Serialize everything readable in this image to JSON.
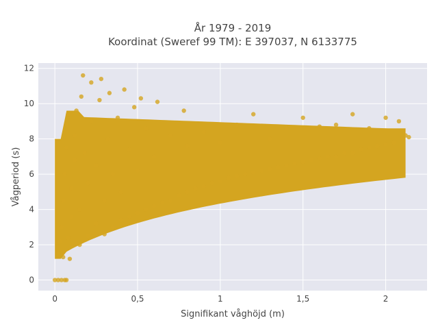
{
  "chart_data": {
    "type": "scatter",
    "title": "År 1979 - 2019",
    "subtitle": "Koordinat (Sweref 99 TM): E 397037, N 6133775",
    "xlabel": "Signifikant våghöjd (m)",
    "ylabel": "Vågperiod (s)",
    "xlim": [
      -0.1,
      2.25
    ],
    "ylim": [
      -0.6,
      12.3
    ],
    "x_ticks": [
      0,
      0.5,
      1,
      1.5,
      2
    ],
    "x_tick_labels": [
      "0",
      "0,5",
      "1",
      "1,5",
      "2"
    ],
    "y_ticks": [
      0,
      2,
      4,
      6,
      8,
      10,
      12
    ],
    "y_tick_labels": [
      "0",
      "2",
      "4",
      "6",
      "8",
      "10",
      "12"
    ],
    "grid": true,
    "legend": "none",
    "point_color": "#D4A520",
    "background_color": "#E5E6EF",
    "series": [
      {
        "points": [
          [
            0.02,
            1.5
          ],
          [
            0.03,
            2.2
          ],
          [
            0.04,
            3.0
          ],
          [
            0.05,
            1.3
          ],
          [
            0.05,
            4.5
          ],
          [
            0.06,
            6.0
          ],
          [
            0.07,
            7.5
          ],
          [
            0.07,
            8.8
          ],
          [
            0.08,
            2.4
          ],
          [
            0.08,
            9.4
          ],
          [
            0.09,
            1.2
          ],
          [
            0.1,
            3.6
          ],
          [
            0.1,
            5.2
          ],
          [
            0.12,
            6.8
          ],
          [
            0.12,
            8.2
          ],
          [
            0.13,
            9.6
          ],
          [
            0.15,
            2.0
          ],
          [
            0.15,
            4.0
          ],
          [
            0.16,
            10.4
          ],
          [
            0.17,
            11.6
          ],
          [
            0.18,
            7.2
          ],
          [
            0.2,
            2.5
          ],
          [
            0.2,
            5.5
          ],
          [
            0.22,
            9.0
          ],
          [
            0.22,
            11.2
          ],
          [
            0.25,
            3.2
          ],
          [
            0.25,
            6.5
          ],
          [
            0.27,
            10.2
          ],
          [
            0.28,
            11.4
          ],
          [
            0.3,
            2.6
          ],
          [
            0.3,
            4.5
          ],
          [
            0.32,
            8.0
          ],
          [
            0.33,
            10.6
          ],
          [
            0.35,
            3.0
          ],
          [
            0.35,
            6.0
          ],
          [
            0.38,
            9.2
          ],
          [
            0.4,
            3.4
          ],
          [
            0.4,
            5.0
          ],
          [
            0.42,
            10.8
          ],
          [
            0.45,
            3.6
          ],
          [
            0.45,
            7.4
          ],
          [
            0.48,
            9.8
          ],
          [
            0.5,
            3.8
          ],
          [
            0.5,
            6.2
          ],
          [
            0.52,
            10.3
          ],
          [
            0.55,
            4.0
          ],
          [
            0.55,
            8.6
          ],
          [
            0.6,
            4.2
          ],
          [
            0.6,
            7.0
          ],
          [
            0.62,
            10.1
          ],
          [
            0.65,
            4.4
          ],
          [
            0.7,
            4.5
          ],
          [
            0.7,
            8.2
          ],
          [
            0.75,
            4.8
          ],
          [
            0.78,
            9.6
          ],
          [
            0.8,
            5.0
          ],
          [
            0.8,
            7.6
          ],
          [
            0.85,
            5.2
          ],
          [
            0.9,
            5.3
          ],
          [
            0.9,
            8.4
          ],
          [
            0.95,
            5.5
          ],
          [
            1.0,
            5.6
          ],
          [
            1.0,
            7.8
          ],
          [
            1.05,
            5.8
          ],
          [
            1.1,
            5.9
          ],
          [
            1.1,
            8.8
          ],
          [
            1.15,
            6.0
          ],
          [
            1.2,
            6.1
          ],
          [
            1.2,
            9.4
          ],
          [
            1.25,
            6.2
          ],
          [
            1.3,
            6.3
          ],
          [
            1.3,
            8.0
          ],
          [
            1.35,
            6.4
          ],
          [
            1.4,
            6.5
          ],
          [
            1.4,
            8.6
          ],
          [
            1.45,
            6.6
          ],
          [
            1.5,
            6.7
          ],
          [
            1.5,
            9.2
          ],
          [
            1.55,
            6.8
          ],
          [
            1.6,
            6.9
          ],
          [
            1.6,
            8.7
          ],
          [
            1.65,
            7.0
          ],
          [
            1.7,
            7.0
          ],
          [
            1.7,
            8.8
          ],
          [
            1.75,
            7.2
          ],
          [
            1.8,
            7.2
          ],
          [
            1.8,
            9.4
          ],
          [
            1.85,
            7.4
          ],
          [
            1.9,
            7.5
          ],
          [
            1.9,
            8.6
          ],
          [
            1.95,
            7.6
          ],
          [
            2.0,
            7.7
          ],
          [
            2.0,
            9.2
          ],
          [
            2.05,
            7.8
          ],
          [
            2.08,
            9.0
          ],
          [
            2.1,
            8.0
          ],
          [
            2.12,
            8.2
          ],
          [
            2.14,
            8.1
          ],
          [
            0.0,
            0.0
          ],
          [
            0.02,
            0.0
          ],
          [
            0.04,
            0.0
          ],
          [
            0.06,
            0.0
          ],
          [
            0.07,
            0.0
          ]
        ]
      }
    ]
  }
}
